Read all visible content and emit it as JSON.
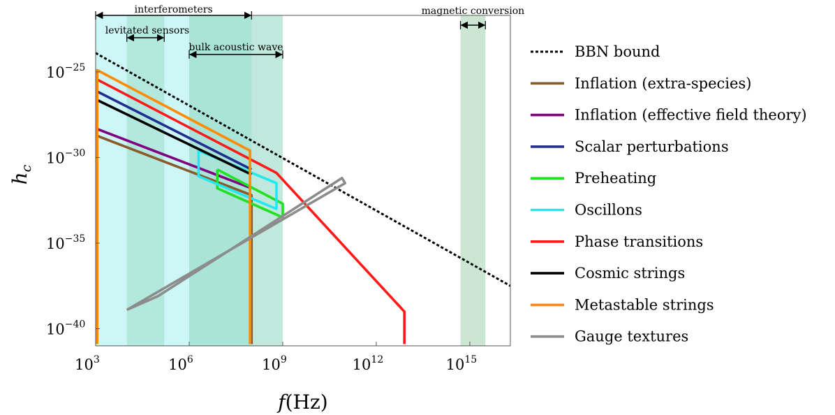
{
  "chart_data": {
    "type": "line",
    "xscale": "log10",
    "yscale": "log10",
    "xlim_log10": [
      3,
      16.3
    ],
    "ylim_log10": [
      -41,
      -21.7
    ],
    "xlabel": "f(Hz)",
    "ylabel": "h_c",
    "xticks": [
      {
        "base": "10",
        "exp": "3",
        "value_log10": 3
      },
      {
        "base": "10",
        "exp": "6",
        "value_log10": 6
      },
      {
        "base": "10",
        "exp": "9",
        "value_log10": 9
      },
      {
        "base": "10",
        "exp": "12",
        "value_log10": 12
      },
      {
        "base": "10",
        "exp": "15",
        "value_log10": 15
      }
    ],
    "yticks": [
      {
        "base": "10",
        "exp": "−25",
        "value_log10": -25
      },
      {
        "base": "10",
        "exp": "−30",
        "value_log10": -30
      },
      {
        "base": "10",
        "exp": "−35",
        "value_log10": -35
      },
      {
        "base": "10",
        "exp": "−40",
        "value_log10": -40
      }
    ],
    "bands": [
      {
        "label": "interferometers",
        "x_log10": [
          3.0,
          8.0
        ],
        "color": "#c4f4f4",
        "opacity": 0.85
      },
      {
        "label": "levitated sensors",
        "x_log10": [
          4.0,
          5.2
        ],
        "color": "#9fdccb",
        "opacity": 0.55
      },
      {
        "label": "bulk acoustic wave",
        "x_log10": [
          6.0,
          9.0
        ],
        "color": "#8ed5c0",
        "opacity": 0.55
      },
      {
        "label": "magnetic conversion",
        "x_log10": [
          14.7,
          15.5
        ],
        "color": "#b5ddc2",
        "opacity": 0.7
      }
    ],
    "series": [
      {
        "name": "BBN bound",
        "color": "#000000",
        "dash": true,
        "points": [
          [
            3,
            -23.9
          ],
          [
            16.3,
            -37.5
          ]
        ]
      },
      {
        "name": "Inflation (extra-species)",
        "color": "#8B5A2B",
        "points": [
          [
            3,
            -40.9
          ],
          [
            3,
            -28.7
          ],
          [
            8.0,
            -32.2
          ],
          [
            8.0,
            -40.9
          ]
        ]
      },
      {
        "name": "Inflation (effective field theory)",
        "color": "#800080",
        "points": [
          [
            3,
            -28.3
          ],
          [
            8.0,
            -31.8
          ]
        ]
      },
      {
        "name": "Scalar perturbations",
        "color": "#1f2f8f",
        "points": [
          [
            3,
            -26.1
          ],
          [
            8.0,
            -30.7
          ]
        ]
      },
      {
        "name": "Preheating",
        "color": "#22e022",
        "points": [
          [
            6.9,
            -30.7
          ],
          [
            9.0,
            -32.7
          ],
          [
            9.0,
            -33.5
          ],
          [
            6.9,
            -31.8
          ],
          [
            6.9,
            -30.7
          ]
        ]
      },
      {
        "name": "Oscillons",
        "color": "#22e8f0",
        "points": [
          [
            6.3,
            -29.6
          ],
          [
            8.8,
            -31.5
          ],
          [
            8.8,
            -33.0
          ],
          [
            6.3,
            -31.1
          ],
          [
            6.3,
            -29.6
          ]
        ]
      },
      {
        "name": "Phase transitions",
        "color": "#ff1a1a",
        "points": [
          [
            3,
            -40.9
          ],
          [
            3,
            -25.4
          ],
          [
            8.8,
            -30.9
          ],
          [
            12.9,
            -39.0
          ],
          [
            12.9,
            -40.9
          ]
        ]
      },
      {
        "name": "Cosmic strings",
        "color": "#000000",
        "points": [
          [
            3,
            -26.6
          ],
          [
            8.0,
            -31.0
          ]
        ]
      },
      {
        "name": "Metastable strings",
        "color": "#ff8c00",
        "points": [
          [
            3.05,
            -40.9
          ],
          [
            3.05,
            -24.9
          ],
          [
            7.95,
            -29.6
          ],
          [
            7.95,
            -40.9
          ]
        ]
      },
      {
        "name": "Gauge textures",
        "color": "#8c8c8c",
        "points": [
          [
            4.0,
            -38.9
          ],
          [
            11.0,
            -31.5
          ],
          [
            10.9,
            -31.2
          ],
          [
            5.0,
            -38.1
          ],
          [
            4.0,
            -38.9
          ]
        ]
      }
    ],
    "legend_position": "right"
  }
}
